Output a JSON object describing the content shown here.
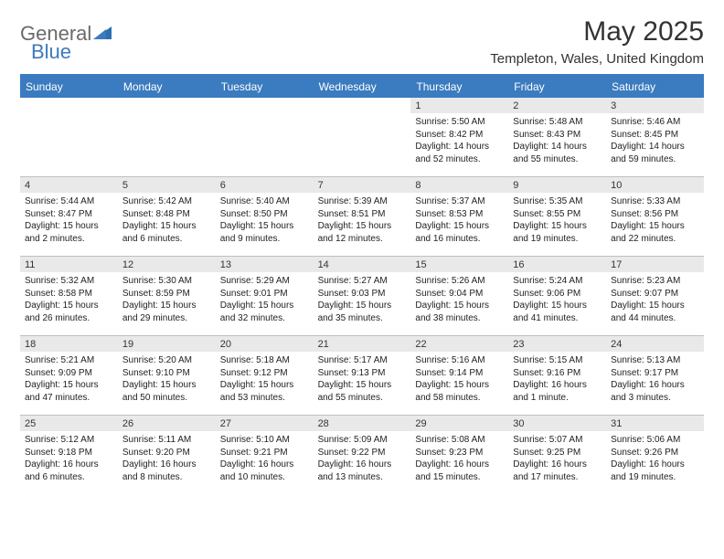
{
  "brand": {
    "part1": "General",
    "part2": "Blue"
  },
  "title": "May 2025",
  "location": "Templeton, Wales, United Kingdom",
  "colors": {
    "header_bar": "#3b7bbf",
    "daynum_bg": "#e9e9e9",
    "border": "#bfbfbf",
    "text": "#222222",
    "logo_grey": "#6a6a6a",
    "logo_blue": "#3b7bbf"
  },
  "day_headers": [
    "Sunday",
    "Monday",
    "Tuesday",
    "Wednesday",
    "Thursday",
    "Friday",
    "Saturday"
  ],
  "weeks": [
    [
      {
        "empty": true
      },
      {
        "empty": true
      },
      {
        "empty": true
      },
      {
        "empty": true
      },
      {
        "num": "1",
        "sunrise": "Sunrise: 5:50 AM",
        "sunset": "Sunset: 8:42 PM",
        "day1": "Daylight: 14 hours",
        "day2": "and 52 minutes."
      },
      {
        "num": "2",
        "sunrise": "Sunrise: 5:48 AM",
        "sunset": "Sunset: 8:43 PM",
        "day1": "Daylight: 14 hours",
        "day2": "and 55 minutes."
      },
      {
        "num": "3",
        "sunrise": "Sunrise: 5:46 AM",
        "sunset": "Sunset: 8:45 PM",
        "day1": "Daylight: 14 hours",
        "day2": "and 59 minutes."
      }
    ],
    [
      {
        "num": "4",
        "sunrise": "Sunrise: 5:44 AM",
        "sunset": "Sunset: 8:47 PM",
        "day1": "Daylight: 15 hours",
        "day2": "and 2 minutes."
      },
      {
        "num": "5",
        "sunrise": "Sunrise: 5:42 AM",
        "sunset": "Sunset: 8:48 PM",
        "day1": "Daylight: 15 hours",
        "day2": "and 6 minutes."
      },
      {
        "num": "6",
        "sunrise": "Sunrise: 5:40 AM",
        "sunset": "Sunset: 8:50 PM",
        "day1": "Daylight: 15 hours",
        "day2": "and 9 minutes."
      },
      {
        "num": "7",
        "sunrise": "Sunrise: 5:39 AM",
        "sunset": "Sunset: 8:51 PM",
        "day1": "Daylight: 15 hours",
        "day2": "and 12 minutes."
      },
      {
        "num": "8",
        "sunrise": "Sunrise: 5:37 AM",
        "sunset": "Sunset: 8:53 PM",
        "day1": "Daylight: 15 hours",
        "day2": "and 16 minutes."
      },
      {
        "num": "9",
        "sunrise": "Sunrise: 5:35 AM",
        "sunset": "Sunset: 8:55 PM",
        "day1": "Daylight: 15 hours",
        "day2": "and 19 minutes."
      },
      {
        "num": "10",
        "sunrise": "Sunrise: 5:33 AM",
        "sunset": "Sunset: 8:56 PM",
        "day1": "Daylight: 15 hours",
        "day2": "and 22 minutes."
      }
    ],
    [
      {
        "num": "11",
        "sunrise": "Sunrise: 5:32 AM",
        "sunset": "Sunset: 8:58 PM",
        "day1": "Daylight: 15 hours",
        "day2": "and 26 minutes."
      },
      {
        "num": "12",
        "sunrise": "Sunrise: 5:30 AM",
        "sunset": "Sunset: 8:59 PM",
        "day1": "Daylight: 15 hours",
        "day2": "and 29 minutes."
      },
      {
        "num": "13",
        "sunrise": "Sunrise: 5:29 AM",
        "sunset": "Sunset: 9:01 PM",
        "day1": "Daylight: 15 hours",
        "day2": "and 32 minutes."
      },
      {
        "num": "14",
        "sunrise": "Sunrise: 5:27 AM",
        "sunset": "Sunset: 9:03 PM",
        "day1": "Daylight: 15 hours",
        "day2": "and 35 minutes."
      },
      {
        "num": "15",
        "sunrise": "Sunrise: 5:26 AM",
        "sunset": "Sunset: 9:04 PM",
        "day1": "Daylight: 15 hours",
        "day2": "and 38 minutes."
      },
      {
        "num": "16",
        "sunrise": "Sunrise: 5:24 AM",
        "sunset": "Sunset: 9:06 PM",
        "day1": "Daylight: 15 hours",
        "day2": "and 41 minutes."
      },
      {
        "num": "17",
        "sunrise": "Sunrise: 5:23 AM",
        "sunset": "Sunset: 9:07 PM",
        "day1": "Daylight: 15 hours",
        "day2": "and 44 minutes."
      }
    ],
    [
      {
        "num": "18",
        "sunrise": "Sunrise: 5:21 AM",
        "sunset": "Sunset: 9:09 PM",
        "day1": "Daylight: 15 hours",
        "day2": "and 47 minutes."
      },
      {
        "num": "19",
        "sunrise": "Sunrise: 5:20 AM",
        "sunset": "Sunset: 9:10 PM",
        "day1": "Daylight: 15 hours",
        "day2": "and 50 minutes."
      },
      {
        "num": "20",
        "sunrise": "Sunrise: 5:18 AM",
        "sunset": "Sunset: 9:12 PM",
        "day1": "Daylight: 15 hours",
        "day2": "and 53 minutes."
      },
      {
        "num": "21",
        "sunrise": "Sunrise: 5:17 AM",
        "sunset": "Sunset: 9:13 PM",
        "day1": "Daylight: 15 hours",
        "day2": "and 55 minutes."
      },
      {
        "num": "22",
        "sunrise": "Sunrise: 5:16 AM",
        "sunset": "Sunset: 9:14 PM",
        "day1": "Daylight: 15 hours",
        "day2": "and 58 minutes."
      },
      {
        "num": "23",
        "sunrise": "Sunrise: 5:15 AM",
        "sunset": "Sunset: 9:16 PM",
        "day1": "Daylight: 16 hours",
        "day2": "and 1 minute."
      },
      {
        "num": "24",
        "sunrise": "Sunrise: 5:13 AM",
        "sunset": "Sunset: 9:17 PM",
        "day1": "Daylight: 16 hours",
        "day2": "and 3 minutes."
      }
    ],
    [
      {
        "num": "25",
        "sunrise": "Sunrise: 5:12 AM",
        "sunset": "Sunset: 9:18 PM",
        "day1": "Daylight: 16 hours",
        "day2": "and 6 minutes."
      },
      {
        "num": "26",
        "sunrise": "Sunrise: 5:11 AM",
        "sunset": "Sunset: 9:20 PM",
        "day1": "Daylight: 16 hours",
        "day2": "and 8 minutes."
      },
      {
        "num": "27",
        "sunrise": "Sunrise: 5:10 AM",
        "sunset": "Sunset: 9:21 PM",
        "day1": "Daylight: 16 hours",
        "day2": "and 10 minutes."
      },
      {
        "num": "28",
        "sunrise": "Sunrise: 5:09 AM",
        "sunset": "Sunset: 9:22 PM",
        "day1": "Daylight: 16 hours",
        "day2": "and 13 minutes."
      },
      {
        "num": "29",
        "sunrise": "Sunrise: 5:08 AM",
        "sunset": "Sunset: 9:23 PM",
        "day1": "Daylight: 16 hours",
        "day2": "and 15 minutes."
      },
      {
        "num": "30",
        "sunrise": "Sunrise: 5:07 AM",
        "sunset": "Sunset: 9:25 PM",
        "day1": "Daylight: 16 hours",
        "day2": "and 17 minutes."
      },
      {
        "num": "31",
        "sunrise": "Sunrise: 5:06 AM",
        "sunset": "Sunset: 9:26 PM",
        "day1": "Daylight: 16 hours",
        "day2": "and 19 minutes."
      }
    ]
  ]
}
